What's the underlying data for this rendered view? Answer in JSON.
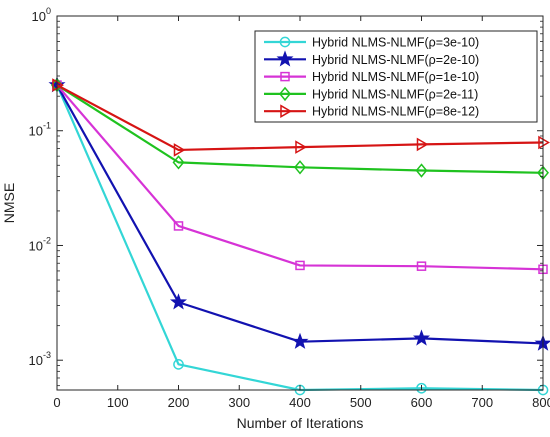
{
  "chart_data": {
    "type": "line",
    "title": "",
    "xlabel": "Number of Iterations",
    "ylabel": "NMSE",
    "xlim": [
      0,
      800
    ],
    "ylim": [
      0.00055,
      1
    ],
    "yscale": "log",
    "x_ticks": [
      0,
      100,
      200,
      300,
      400,
      500,
      600,
      700,
      800
    ],
    "y_ticks": [
      {
        "value": 0.001,
        "base": "10",
        "exp": "-3"
      },
      {
        "value": 0.01,
        "base": "10",
        "exp": "-2"
      },
      {
        "value": 0.1,
        "base": "10",
        "exp": "-1"
      },
      {
        "value": 1,
        "base": "10",
        "exp": "0"
      }
    ],
    "grid": false,
    "legend_position": "top-right",
    "x": [
      0,
      200,
      400,
      600,
      800
    ],
    "series": [
      {
        "name": "Hybrid NLMS-NLMF(ρ=3e-10)",
        "color": "#33d6d6",
        "marker": "circle",
        "values": [
          0.25,
          0.00092,
          0.00055,
          0.00057,
          0.00055
        ]
      },
      {
        "name": "Hybrid NLMS-NLMF(ρ=2e-10)",
        "color": "#1212b0",
        "marker": "star",
        "values": [
          0.25,
          0.0032,
          0.00145,
          0.00155,
          0.0014
        ]
      },
      {
        "name": "Hybrid NLMS-NLMF(ρ=1e-10)",
        "color": "#d633d6",
        "marker": "square",
        "values": [
          0.25,
          0.0148,
          0.0067,
          0.0066,
          0.0062
        ]
      },
      {
        "name": "Hybrid NLMS-NLMF(ρ=2e-11)",
        "color": "#1fc21f",
        "marker": "diamond",
        "values": [
          0.25,
          0.053,
          0.048,
          0.045,
          0.043
        ]
      },
      {
        "name": "Hybrid NLMS-NLMF(ρ=8e-12)",
        "color": "#d61414",
        "marker": "triangle-right",
        "values": [
          0.25,
          0.068,
          0.072,
          0.076,
          0.079
        ]
      }
    ]
  }
}
